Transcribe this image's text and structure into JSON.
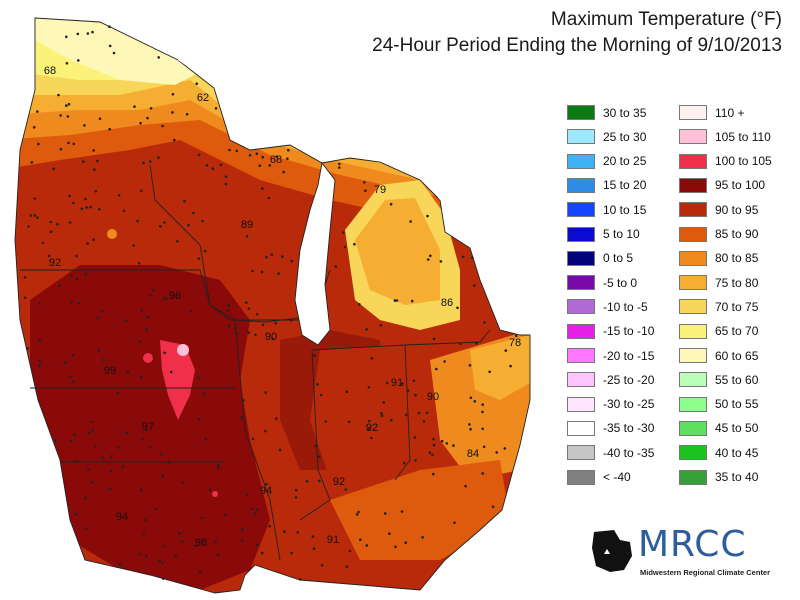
{
  "title": "Maximum Temperature (°F)",
  "subtitle": "24-Hour Period Ending the Morning of 9/10/2013",
  "legend": {
    "left": [
      {
        "label": "30 to 35",
        "color": "#0a7a13"
      },
      {
        "label": "25 to 30",
        "color": "#9ee9ff"
      },
      {
        "label": "20 to 25",
        "color": "#3db3f5"
      },
      {
        "label": "15 to 20",
        "color": "#2f8be8"
      },
      {
        "label": "10 to 15",
        "color": "#1446ff"
      },
      {
        "label": "5 to 10",
        "color": "#0a0ad0"
      },
      {
        "label": "0 to 5",
        "color": "#02027a"
      },
      {
        "label": "-5 to 0",
        "color": "#7a0aa8"
      },
      {
        "label": "-10 to -5",
        "color": "#b26bd6"
      },
      {
        "label": "-15 to -10",
        "color": "#e61ee6"
      },
      {
        "label": "-20 to -15",
        "color": "#ff78ff"
      },
      {
        "label": "-25 to -20",
        "color": "#ffc4ff"
      },
      {
        "label": "-30 to -25",
        "color": "#ffe6ff"
      },
      {
        "label": "-35 to -30",
        "color": "#ffffff"
      },
      {
        "label": "-40 to -35",
        "color": "#c6c6c6"
      },
      {
        "label": "< -40",
        "color": "#808080"
      }
    ],
    "right": [
      {
        "label": "110 +",
        "color": "#fff0f0"
      },
      {
        "label": "105 to 110",
        "color": "#ffc0d8"
      },
      {
        "label": "100 to 105",
        "color": "#f0304a"
      },
      {
        "label": "95 to 100",
        "color": "#8a0a0a"
      },
      {
        "label": "90 to 95",
        "color": "#b82a0a"
      },
      {
        "label": "85 to 90",
        "color": "#de5a0c"
      },
      {
        "label": "80 to 85",
        "color": "#ef8a1e"
      },
      {
        "label": "75 to 80",
        "color": "#f5ad32"
      },
      {
        "label": "70 to 75",
        "color": "#f8d65a"
      },
      {
        "label": "65 to 70",
        "color": "#fbf27a"
      },
      {
        "label": "60 to 65",
        "color": "#fdf7b8"
      },
      {
        "label": "55 to 60",
        "color": "#baffba"
      },
      {
        "label": "50 to 55",
        "color": "#8cff8c"
      },
      {
        "label": "45 to 50",
        "color": "#5ee05e"
      },
      {
        "label": "40 to 45",
        "color": "#1ec41e"
      },
      {
        "label": "35 to 40",
        "color": "#36a036"
      }
    ]
  },
  "map_labels": [
    {
      "text": "68",
      "lx": 50,
      "ly": 74
    },
    {
      "text": "62",
      "lx": 203,
      "ly": 101
    },
    {
      "text": "68",
      "lx": 276,
      "ly": 163
    },
    {
      "text": "79",
      "lx": 380,
      "ly": 193
    },
    {
      "text": "89",
      "lx": 247,
      "ly": 228
    },
    {
      "text": "92",
      "lx": 55,
      "ly": 266
    },
    {
      "text": "96",
      "lx": 175,
      "ly": 299
    },
    {
      "text": "86",
      "lx": 447,
      "ly": 306
    },
    {
      "text": "90",
      "lx": 271,
      "ly": 340
    },
    {
      "text": "78",
      "lx": 515,
      "ly": 346
    },
    {
      "text": "99",
      "lx": 110,
      "ly": 374
    },
    {
      "text": "91",
      "lx": 397,
      "ly": 386
    },
    {
      "text": "90",
      "lx": 433,
      "ly": 400
    },
    {
      "text": "97",
      "lx": 148,
      "ly": 430
    },
    {
      "text": "92",
      "lx": 372,
      "ly": 431
    },
    {
      "text": "84",
      "lx": 473,
      "ly": 457
    },
    {
      "text": "92",
      "lx": 339,
      "ly": 485
    },
    {
      "text": "94",
      "lx": 266,
      "ly": 494
    },
    {
      "text": "94",
      "lx": 122,
      "ly": 520
    },
    {
      "text": "98",
      "lx": 201,
      "ly": 546
    },
    {
      "text": "91",
      "lx": 333,
      "ly": 543
    }
  ],
  "logo": {
    "text": "MRCC",
    "subtitle": "Midwestern Regional Climate Center"
  }
}
